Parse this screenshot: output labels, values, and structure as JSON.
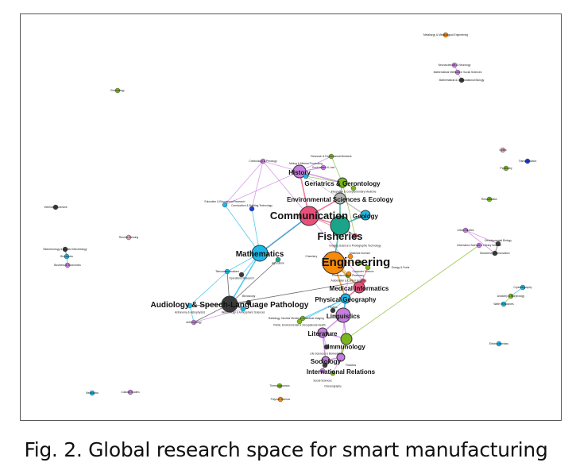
{
  "caption": "Fig. 2. Global research space for smart manufacturing",
  "colors": {
    "pink": "#e8507a",
    "teal": "#1aa58a",
    "orange": "#f58a0b",
    "cyan": "#1bb8e8",
    "violet": "#c77ce0",
    "gray": "#b5b5b5",
    "green": "#7ab51d",
    "dark": "#3a3a3a",
    "blue": "#1f3fd1",
    "rose": "#d9a3b5"
  },
  "nodes": [
    {
      "label": "Communication",
      "color": "pink",
      "weight": 12,
      "major": true
    },
    {
      "label": "Fisheries",
      "color": "teal",
      "weight": 12,
      "major": true
    },
    {
      "label": "Engineering",
      "color": "orange",
      "weight": 14,
      "major": true
    },
    {
      "label": "Mathematics",
      "color": "cyan",
      "weight": 10,
      "major": true
    },
    {
      "label": "History",
      "color": "violet",
      "weight": 8,
      "major": true
    },
    {
      "label": "Environmental Sciences & Ecology",
      "color": "gray",
      "weight": 7,
      "major": true
    },
    {
      "label": "Geriatrics & Gerontology",
      "color": "green",
      "weight": 6,
      "major": true
    },
    {
      "label": "Audiology & Speech-Language Pathology",
      "color": "dark",
      "weight": 10,
      "major": true
    },
    {
      "label": "Medical Informatics",
      "color": "pink",
      "weight": 7,
      "major": true
    },
    {
      "label": "Physical Geography",
      "color": "cyan",
      "weight": 6,
      "major": true
    },
    {
      "label": "Linguistics",
      "color": "violet",
      "weight": 9,
      "major": true
    },
    {
      "label": "Literature",
      "color": "violet",
      "weight": 6,
      "major": true
    },
    {
      "label": "Immunology",
      "color": "green",
      "weight": 7,
      "major": true
    },
    {
      "label": "Sociology",
      "color": "violet",
      "weight": 5,
      "major": true
    },
    {
      "label": "International Relations",
      "color": "violet",
      "weight": 5,
      "major": true
    },
    {
      "label": "Geology",
      "color": "cyan",
      "weight": 6,
      "major": true
    },
    {
      "label": "Metallurgy & Metallurgical Engineering",
      "color": "orange",
      "weight": 3
    },
    {
      "label": "Neurosciences & Neurology",
      "color": "violet",
      "weight": 3
    },
    {
      "label": "Mathematical Methods in Social Sciences",
      "color": "violet",
      "weight": 3
    },
    {
      "label": "Mathematical & Computational Biology",
      "color": "dark",
      "weight": 3
    },
    {
      "label": "Veterinary Sciences",
      "color": "dark",
      "weight": 3
    },
    {
      "label": "Biotechnology & Applied Microbiology",
      "color": "dark",
      "weight": 3
    },
    {
      "label": "Biophysics",
      "color": "cyan",
      "weight": 3
    },
    {
      "label": "Business & Economics",
      "color": "violet",
      "weight": 3
    },
    {
      "label": "Remote Sensing",
      "color": "rose",
      "weight": 3
    },
    {
      "label": "Entomology",
      "color": "green",
      "weight": 3
    },
    {
      "label": "Optics",
      "color": "rose",
      "weight": 3
    },
    {
      "label": "Transplantation",
      "color": "blue",
      "weight": 3
    },
    {
      "label": "Psychiatry",
      "color": "green",
      "weight": 3
    },
    {
      "label": "Rehabilitation",
      "color": "green",
      "weight": 3
    },
    {
      "label": "Urban Studies",
      "color": "violet",
      "weight": 3
    },
    {
      "label": "Information Science & Library Science",
      "color": "violet",
      "weight": 3
    },
    {
      "label": "Developmental Biology",
      "color": "dark",
      "weight": 3
    },
    {
      "label": "Biodiversity Conservation",
      "color": "dark",
      "weight": 3
    },
    {
      "label": "Crystallography",
      "color": "cyan",
      "weight": 3
    },
    {
      "label": "Anatomy & Morphology",
      "color": "green",
      "weight": 3
    },
    {
      "label": "Water Resources",
      "color": "cyan",
      "weight": 3
    },
    {
      "label": "Electrochemistry",
      "color": "cyan",
      "weight": 3
    },
    {
      "label": "Mechanics",
      "color": "cyan",
      "weight": 3
    },
    {
      "label": "Cultural Studies",
      "color": "violet",
      "weight": 3
    },
    {
      "label": "Thermodynamics",
      "color": "green",
      "weight": 3
    },
    {
      "label": "Polymer Science",
      "color": "orange",
      "weight": 3
    },
    {
      "label": "Research & Experimental Medicine",
      "color": "green",
      "weight": 3
    },
    {
      "label": "Government & Law",
      "color": "violet",
      "weight": 3
    },
    {
      "label": "Mining & Mineral Processing",
      "color": "cyan",
      "weight": 3
    },
    {
      "label": "Criminology & Penology",
      "color": "violet",
      "weight": 3
    },
    {
      "label": "Integrative & Complementary Medicine",
      "color": "green",
      "weight": 3
    },
    {
      "label": "Imaging Science & Photographic Technology",
      "color": "pink",
      "weight": 3
    },
    {
      "label": "Construction & Building Technology",
      "color": "blue",
      "weight": 3
    },
    {
      "label": "Education & Educational Research",
      "color": "cyan",
      "weight": 3
    },
    {
      "label": "Radiology, Nuclear Medicine & Medical Imaging",
      "color": "green",
      "weight": 3
    },
    {
      "label": "Public, Environmental & Occupational Health",
      "color": "green",
      "weight": 3
    },
    {
      "label": "Pharmacology & Pharmacy",
      "color": "green",
      "weight": 3
    },
    {
      "label": "Telecommunications",
      "color": "cyan",
      "weight": 3
    },
    {
      "label": "Astronomy & Astrophysics",
      "color": "cyan",
      "weight": 3
    },
    {
      "label": "Anthropology",
      "color": "violet",
      "weight": 3
    },
    {
      "label": "Meteorology & Atmospheric Sciences",
      "color": "cyan",
      "weight": 3
    },
    {
      "label": "Microscopy",
      "color": "dark",
      "weight": 3
    },
    {
      "label": "Agriculture",
      "color": "teal",
      "weight": 3
    },
    {
      "label": "Life Sciences & Biomedicine",
      "color": "dark",
      "weight": 3
    },
    {
      "label": "Social Sciences",
      "color": "violet",
      "weight": 3
    },
    {
      "label": "Oceanography",
      "color": "green",
      "weight": 3
    },
    {
      "label": "Automation & Control Systems",
      "color": "orange",
      "weight": 3
    },
    {
      "label": "Computer Science",
      "color": "pink",
      "weight": 3
    },
    {
      "label": "Materials Science",
      "color": "green",
      "weight": 3
    },
    {
      "label": "Physics",
      "color": "dark",
      "weight": 3
    },
    {
      "label": "Chemistry",
      "color": "orange",
      "weight": 3
    },
    {
      "label": "Operations Research",
      "color": "dark",
      "weight": 3
    },
    {
      "label": "Energy & Fuels",
      "color": "green",
      "weight": 3
    },
    {
      "label": "Robotics",
      "color": "dark",
      "weight": 3
    }
  ],
  "edges": [
    [
      0,
      1
    ],
    [
      0,
      5
    ],
    [
      0,
      4
    ],
    [
      0,
      3
    ],
    [
      1,
      2
    ],
    [
      1,
      5
    ],
    [
      1,
      15
    ],
    [
      2,
      8
    ],
    [
      2,
      9
    ],
    [
      2,
      62
    ],
    [
      2,
      64
    ],
    [
      2,
      66
    ],
    [
      3,
      7
    ],
    [
      3,
      0
    ],
    [
      3,
      48
    ],
    [
      3,
      49
    ],
    [
      3,
      67
    ],
    [
      4,
      6
    ],
    [
      4,
      45
    ],
    [
      4,
      42
    ],
    [
      4,
      43
    ],
    [
      5,
      6
    ],
    [
      5,
      15
    ],
    [
      6,
      44
    ],
    [
      6,
      46
    ],
    [
      6,
      47
    ],
    [
      7,
      53
    ],
    [
      7,
      54
    ],
    [
      7,
      55
    ],
    [
      7,
      56
    ],
    [
      7,
      57
    ],
    [
      7,
      63
    ],
    [
      8,
      9
    ],
    [
      8,
      68
    ],
    [
      9,
      10
    ],
    [
      9,
      50
    ],
    [
      9,
      51
    ],
    [
      9,
      65
    ],
    [
      10,
      11
    ],
    [
      10,
      12
    ],
    [
      11,
      12
    ],
    [
      11,
      13
    ],
    [
      11,
      59
    ],
    [
      12,
      14
    ],
    [
      12,
      31
    ],
    [
      13,
      14
    ],
    [
      13,
      60
    ],
    [
      14,
      61
    ],
    [
      14,
      52
    ],
    [
      17,
      18
    ],
    [
      18,
      19
    ],
    [
      21,
      22
    ],
    [
      22,
      23
    ],
    [
      30,
      32
    ],
    [
      32,
      33
    ],
    [
      30,
      33
    ],
    [
      34,
      35
    ],
    [
      35,
      36
    ],
    [
      0,
      47
    ],
    [
      1,
      47
    ],
    [
      4,
      43
    ],
    [
      45,
      48
    ],
    [
      45,
      49
    ],
    [
      3,
      53
    ],
    [
      7,
      58
    ],
    [
      53,
      54
    ],
    [
      55,
      56
    ],
    [
      54,
      55
    ],
    [
      2,
      52
    ],
    [
      6,
      42
    ],
    [
      5,
      44
    ],
    [
      4,
      49
    ],
    [
      45,
      63
    ]
  ]
}
